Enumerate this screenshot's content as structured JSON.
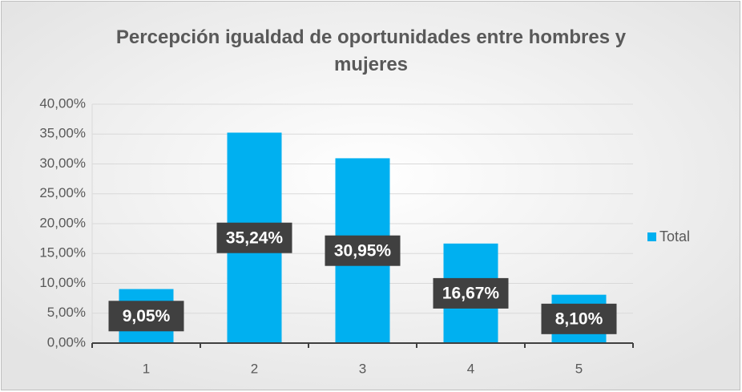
{
  "chart_data": {
    "type": "bar",
    "title": "Percepción igualdad de oportunidades entre hombres y mujeres",
    "categories": [
      "1",
      "2",
      "3",
      "4",
      "5"
    ],
    "series": [
      {
        "name": "Total",
        "color": "#00b0f0",
        "values": [
          9.05,
          35.24,
          30.95,
          16.67,
          8.1
        ],
        "value_labels": [
          "9,05%",
          "35,24%",
          "30,95%",
          "16,67%",
          "8,10%"
        ]
      }
    ],
    "ylim": [
      0,
      40
    ],
    "yticks": [
      {
        "value": 0,
        "label": "0,00%"
      },
      {
        "value": 5,
        "label": "5,00%"
      },
      {
        "value": 10,
        "label": "10,00%"
      },
      {
        "value": 15,
        "label": "15,00%"
      },
      {
        "value": 20,
        "label": "20,00%"
      },
      {
        "value": 25,
        "label": "25,00%"
      },
      {
        "value": 30,
        "label": "30,00%"
      },
      {
        "value": 35,
        "label": "35,00%"
      },
      {
        "value": 40,
        "label": "40,00%"
      }
    ],
    "grid": true,
    "legend": "right"
  }
}
